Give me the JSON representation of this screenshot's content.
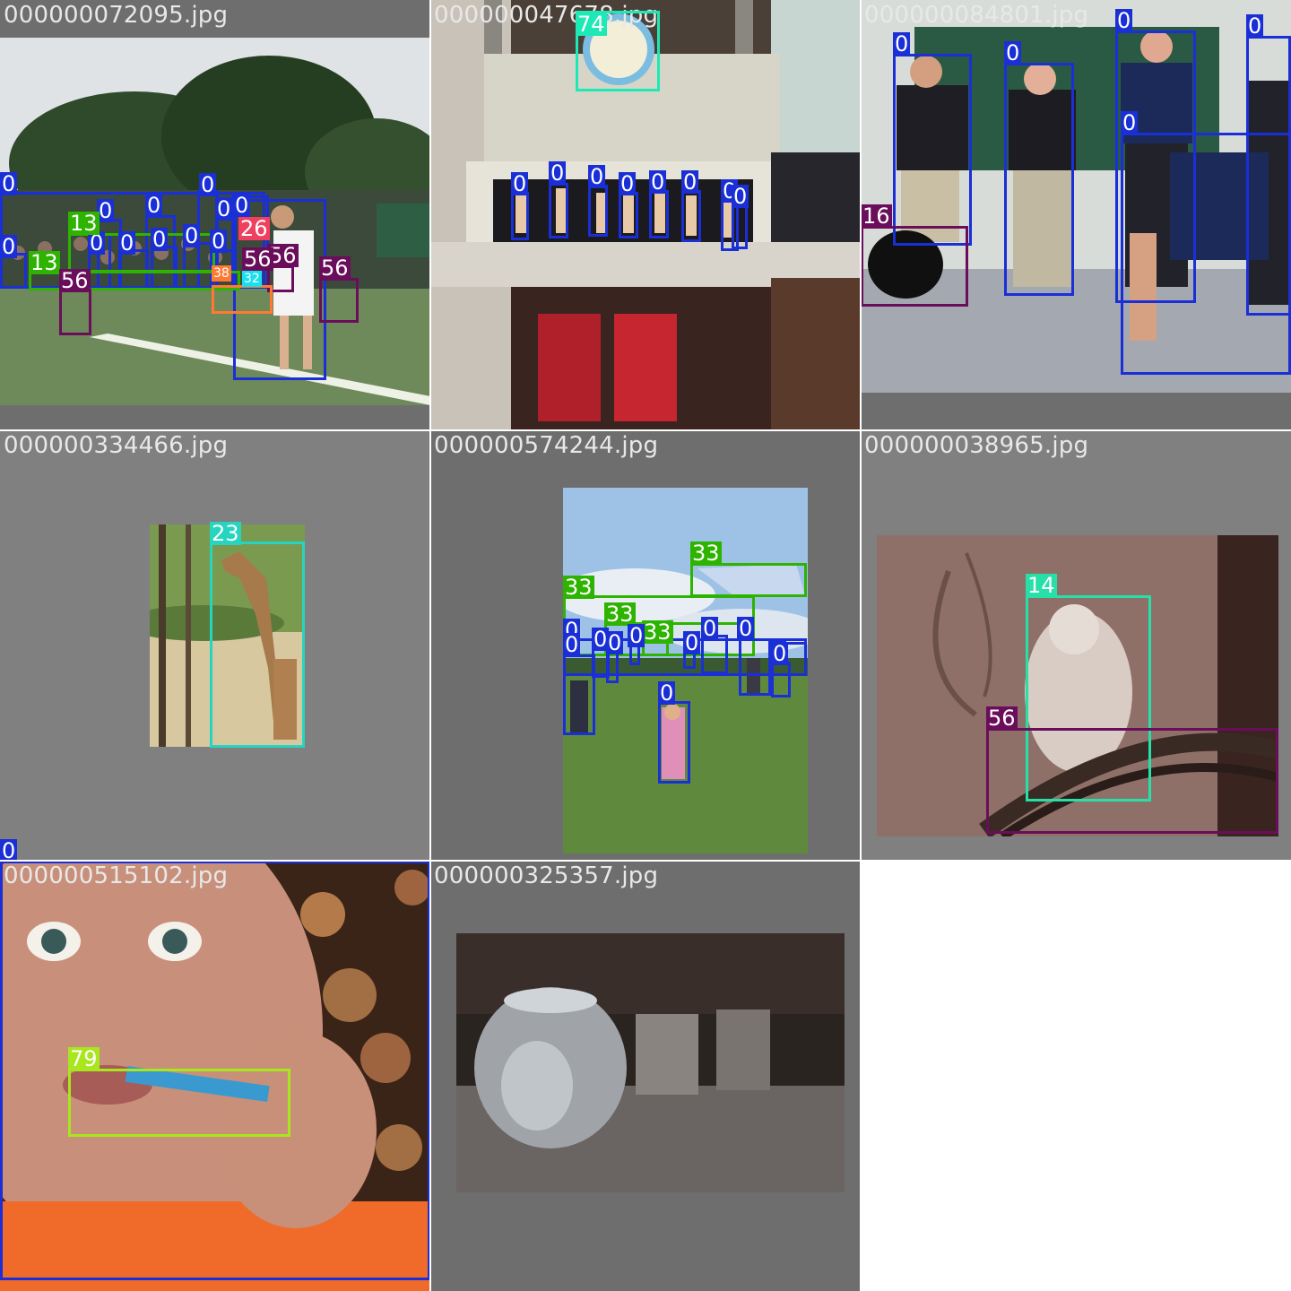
{
  "colors": {
    "person": "#1a2fd6",
    "sports_ball_like": "#2db300",
    "clock": "#1de9b6",
    "chair": "#6a0d5a",
    "dog": "#6a0d5a",
    "giraffe": "#26d4c0",
    "kite": "#2db300",
    "bird": "#26e0a8",
    "toothbrush": "#a8e61d",
    "class26": "#f04060",
    "class38": "#ff7a30",
    "class32": "#18e0f0",
    "grid_bg": "#808080",
    "letterbox": "#6e6e6e"
  },
  "tiles": [
    {
      "filename": "000000072095.jpg",
      "boxes": [
        {
          "label": "0"
        },
        {
          "label": "0"
        },
        {
          "label": "0"
        },
        {
          "label": "0"
        },
        {
          "label": "0"
        },
        {
          "label": "0"
        },
        {
          "label": "0"
        },
        {
          "label": "0"
        },
        {
          "label": "0"
        },
        {
          "label": "0"
        },
        {
          "label": "0"
        },
        {
          "label": "0"
        },
        {
          "label": "0"
        },
        {
          "label": "13"
        },
        {
          "label": "13"
        },
        {
          "label": "26"
        },
        {
          "label": "56"
        },
        {
          "label": "56"
        },
        {
          "label": "56"
        },
        {
          "label": "56"
        },
        {
          "label": "38"
        },
        {
          "label": "32"
        }
      ]
    },
    {
      "filename": "000000047678.jpg",
      "boxes": [
        {
          "label": "74"
        },
        {
          "label": "0"
        },
        {
          "label": "0"
        },
        {
          "label": "0"
        },
        {
          "label": "0"
        },
        {
          "label": "0"
        },
        {
          "label": "0"
        },
        {
          "label": "0"
        },
        {
          "label": "0"
        }
      ]
    },
    {
      "filename": "000000084801.jpg",
      "boxes": [
        {
          "label": "0"
        },
        {
          "label": "0"
        },
        {
          "label": "0"
        },
        {
          "label": "0"
        },
        {
          "label": "0"
        },
        {
          "label": "16"
        }
      ]
    },
    {
      "filename": "000000334466.jpg",
      "boxes": [
        {
          "label": "23"
        }
      ]
    },
    {
      "filename": "000000574244.jpg",
      "boxes": [
        {
          "label": "33"
        },
        {
          "label": "33"
        },
        {
          "label": "33"
        },
        {
          "label": "33"
        },
        {
          "label": "0"
        },
        {
          "label": "0"
        },
        {
          "label": "0"
        },
        {
          "label": "0"
        },
        {
          "label": "0"
        },
        {
          "label": "0"
        },
        {
          "label": "0"
        },
        {
          "label": "0"
        },
        {
          "label": "0"
        },
        {
          "label": "0"
        },
        {
          "label": "0"
        }
      ]
    },
    {
      "filename": "000000038965.jpg",
      "boxes": [
        {
          "label": "14"
        },
        {
          "label": "56"
        }
      ]
    },
    {
      "filename": "000000515102.jpg",
      "boxes": [
        {
          "label": "0"
        },
        {
          "label": "79"
        }
      ]
    },
    {
      "filename": "000000325357.jpg",
      "boxes": []
    }
  ]
}
